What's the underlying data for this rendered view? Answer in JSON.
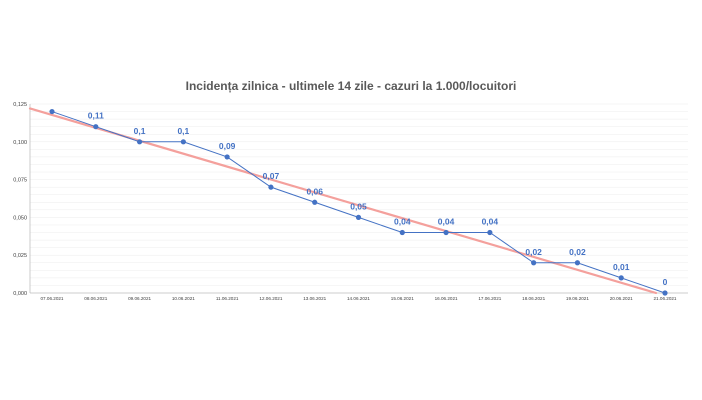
{
  "chart_data": {
    "type": "line",
    "title": "Incidența zilnica - ultimele 14 zile  - cazuri la 1.000/locuitori",
    "categories": [
      "07.06.2021",
      "08.06.2021",
      "09.06.2021",
      "10.06.2021",
      "11.06.2021",
      "12.06.2021",
      "13.06.2021",
      "14.06.2021",
      "15.06.2021",
      "16.06.2021",
      "17.06.2021",
      "18.06.2021",
      "19.06.2021",
      "20.06.2021",
      "21.06.2021"
    ],
    "series": [
      {
        "values": [
          0.12,
          0.11,
          0.1,
          0.1,
          0.09,
          0.07,
          0.06,
          0.05,
          0.04,
          0.04,
          0.04,
          0.02,
          0.02,
          0.01,
          0.0
        ],
        "color": "#4472c4"
      }
    ],
    "data_labels": [
      "",
      "0,11",
      "0,1",
      "0,1",
      "0,09",
      "0,07",
      "0,06",
      "0,05",
      "0,04",
      "0,04",
      "0,04",
      "0,02",
      "0,02",
      "0,01",
      "0"
    ],
    "trendline": {
      "type": "linear",
      "color": "#f4a09c"
    },
    "y_ticks": [
      "0,000",
      "0,025",
      "0,050",
      "0,075",
      "0,100",
      "0,125"
    ],
    "ylim": [
      0,
      0.125
    ],
    "grid": true,
    "legend": "none",
    "xlabel": "",
    "ylabel": ""
  }
}
